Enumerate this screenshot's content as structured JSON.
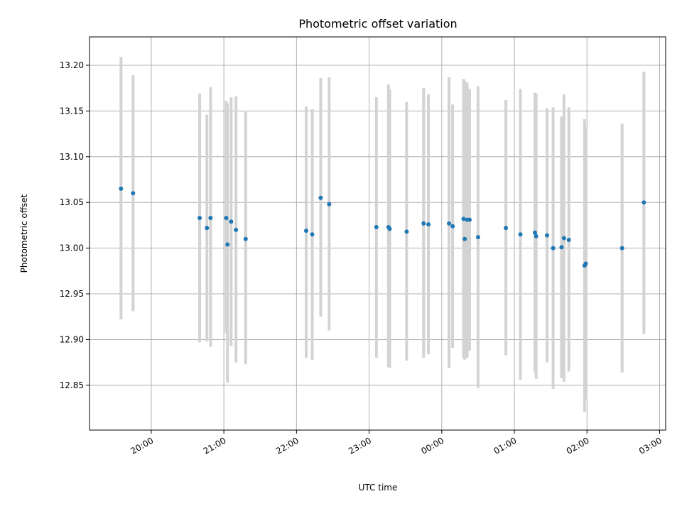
{
  "chart_data": {
    "type": "scatter",
    "title": "Photometric offset variation",
    "xlabel": "UTC time",
    "ylabel": "Photometric offset",
    "x_tick_labels": [
      "20:00",
      "21:00",
      "22:00",
      "23:00",
      "00:00",
      "01:00",
      "02:00",
      "03:00"
    ],
    "y_tick_labels": [
      "12.85",
      "12.90",
      "12.95",
      "13.00",
      "13.05",
      "13.10",
      "13.15",
      "13.20"
    ],
    "x_axis_unit": "UTC clock time",
    "x_range": [
      "19:09",
      "03:05"
    ],
    "ylim": [
      12.801,
      13.231
    ],
    "grid": true,
    "point_color": "#1f77b4",
    "errorbar_color": "#d3d3d3",
    "points": [
      {
        "x": "19:35",
        "y": 13.065,
        "ylo": 12.922,
        "yhi": 13.209
      },
      {
        "x": "19:45",
        "y": 13.06,
        "ylo": 12.931,
        "yhi": 13.189
      },
      {
        "x": "20:40",
        "y": 13.033,
        "ylo": 12.897,
        "yhi": 13.169
      },
      {
        "x": "20:46",
        "y": 13.022,
        "ylo": 12.898,
        "yhi": 13.146
      },
      {
        "x": "20:49",
        "y": 13.033,
        "ylo": 12.892,
        "yhi": 13.176
      },
      {
        "x": "21:02",
        "y": 13.033,
        "ylo": 12.907,
        "yhi": 13.161
      },
      {
        "x": "21:03",
        "y": 13.004,
        "ylo": 12.853,
        "yhi": 13.158
      },
      {
        "x": "21:06",
        "y": 13.029,
        "ylo": 12.893,
        "yhi": 13.165
      },
      {
        "x": "21:10",
        "y": 13.02,
        "ylo": 12.875,
        "yhi": 13.166
      },
      {
        "x": "21:18",
        "y": 13.01,
        "ylo": 12.873,
        "yhi": 13.149
      },
      {
        "x": "22:08",
        "y": 13.019,
        "ylo": 12.88,
        "yhi": 13.155
      },
      {
        "x": "22:13",
        "y": 13.015,
        "ylo": 12.878,
        "yhi": 13.152
      },
      {
        "x": "22:20",
        "y": 13.055,
        "ylo": 12.925,
        "yhi": 13.186
      },
      {
        "x": "22:27",
        "y": 13.048,
        "ylo": 12.91,
        "yhi": 13.187
      },
      {
        "x": "23:06",
        "y": 13.023,
        "ylo": 12.88,
        "yhi": 13.165
      },
      {
        "x": "23:16",
        "y": 13.023,
        "ylo": 12.87,
        "yhi": 13.179
      },
      {
        "x": "23:17",
        "y": 13.021,
        "ylo": 12.869,
        "yhi": 13.173
      },
      {
        "x": "23:31",
        "y": 13.018,
        "ylo": 12.877,
        "yhi": 13.16
      },
      {
        "x": "23:45",
        "y": 13.027,
        "ylo": 12.88,
        "yhi": 13.175
      },
      {
        "x": "23:49",
        "y": 13.026,
        "ylo": 12.884,
        "yhi": 13.168
      },
      {
        "x": "00:06",
        "y": 13.027,
        "ylo": 12.869,
        "yhi": 13.187
      },
      {
        "x": "00:09",
        "y": 13.024,
        "ylo": 12.891,
        "yhi": 13.157
      },
      {
        "x": "00:18",
        "y": 13.032,
        "ylo": 12.88,
        "yhi": 13.185
      },
      {
        "x": "00:19",
        "y": 13.01,
        "ylo": 12.878,
        "yhi": 13.183
      },
      {
        "x": "00:21",
        "y": 13.031,
        "ylo": 12.88,
        "yhi": 13.181
      },
      {
        "x": "00:23",
        "y": 13.031,
        "ylo": 12.888,
        "yhi": 13.174
      },
      {
        "x": "00:30",
        "y": 13.012,
        "ylo": 12.847,
        "yhi": 13.177
      },
      {
        "x": "00:53",
        "y": 13.022,
        "ylo": 12.883,
        "yhi": 13.162
      },
      {
        "x": "01:05",
        "y": 13.015,
        "ylo": 12.856,
        "yhi": 13.174
      },
      {
        "x": "01:17",
        "y": 13.017,
        "ylo": 12.864,
        "yhi": 13.17
      },
      {
        "x": "01:18",
        "y": 13.013,
        "ylo": 12.857,
        "yhi": 13.169
      },
      {
        "x": "01:27",
        "y": 13.014,
        "ylo": 12.875,
        "yhi": 13.153
      },
      {
        "x": "01:32",
        "y": 13.0,
        "ylo": 12.846,
        "yhi": 13.154
      },
      {
        "x": "01:39",
        "y": 13.001,
        "ylo": 12.858,
        "yhi": 13.144
      },
      {
        "x": "01:41",
        "y": 13.011,
        "ylo": 12.854,
        "yhi": 13.168
      },
      {
        "x": "01:45",
        "y": 13.009,
        "ylo": 12.865,
        "yhi": 13.154
      },
      {
        "x": "01:58",
        "y": 12.981,
        "ylo": 12.821,
        "yhi": 13.141
      },
      {
        "x": "01:59",
        "y": 12.983,
        "ylo": 12.833,
        "yhi": 13.133
      },
      {
        "x": "02:29",
        "y": 13.0,
        "ylo": 12.864,
        "yhi": 13.136
      },
      {
        "x": "02:47",
        "y": 13.05,
        "ylo": 12.906,
        "yhi": 13.193
      }
    ]
  }
}
